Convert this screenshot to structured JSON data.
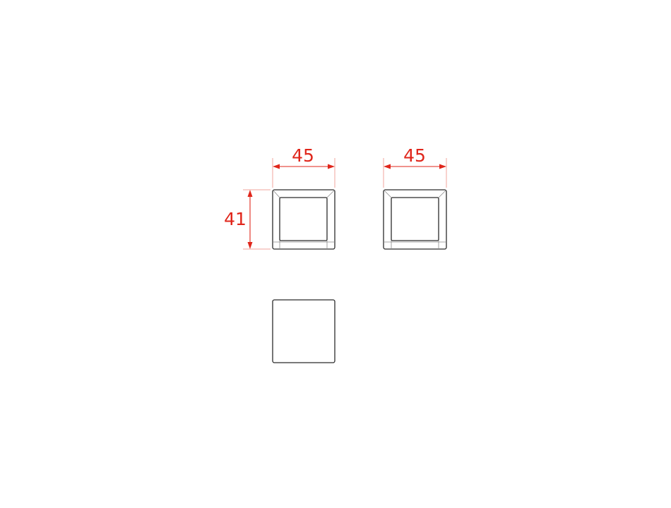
{
  "drawing": {
    "views": {
      "front": {
        "width_dim": "45",
        "height_dim": "41"
      },
      "side": {
        "width_dim": "45"
      },
      "top": {}
    },
    "colors": {
      "dimension": "#e0261b",
      "extension": "#f2a49c",
      "outline": "#2b2b2b",
      "detail": "#8a8a8a",
      "background": "#ffffff"
    }
  }
}
